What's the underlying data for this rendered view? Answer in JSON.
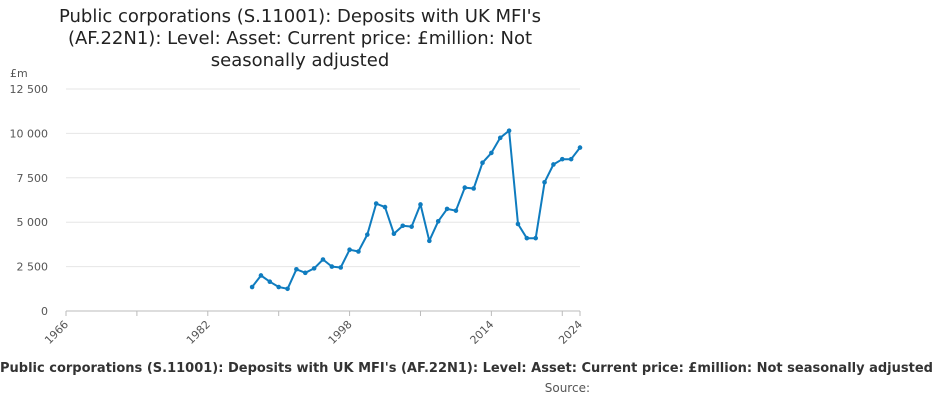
{
  "chart_data": {
    "type": "line",
    "title": "Public corporations (S.11001): Deposits with UK MFI's (AF.22N1): Level: Asset: Current price: £million: Not seasonally adjusted",
    "ylabel": "£m",
    "xlabel": "",
    "ylim": [
      0,
      12500
    ],
    "xlim": [
      1966,
      2024
    ],
    "y_ticks": [
      0,
      2500,
      5000,
      7500,
      10000,
      12500
    ],
    "y_tick_labels": [
      "0",
      "2 500",
      "5 000",
      "7 500",
      "10 000",
      "12 500"
    ],
    "x_ticks": [
      1966,
      1982,
      1998,
      2014,
      2024
    ],
    "x_tick_labels": [
      "1966",
      "1982",
      "1998",
      "2014",
      "2024"
    ],
    "grid": true,
    "legend_position": "bottom",
    "series": [
      {
        "name": "Public corporations (S.11001): Deposits with UK MFI's (AF.22N1): Level: Asset: Current price: £million: Not seasonally adjusted",
        "color": "#0f7cbf",
        "x": [
          1987,
          1988,
          1989,
          1990,
          1991,
          1992,
          1993,
          1994,
          1995,
          1996,
          1997,
          1998,
          1999,
          2000,
          2001,
          2002,
          2003,
          2004,
          2005,
          2006,
          2007,
          2008,
          2009,
          2010,
          2011,
          2012,
          2013,
          2014,
          2015,
          2016,
          2017,
          2018,
          2019,
          2020,
          2021,
          2022,
          2023,
          2024
        ],
        "values": [
          1350,
          2000,
          1650,
          1350,
          1250,
          2350,
          2150,
          2400,
          2900,
          2500,
          2450,
          3450,
          3350,
          4300,
          6050,
          5850,
          4350,
          4800,
          4750,
          6000,
          3950,
          5050,
          5750,
          5650,
          6950,
          6900,
          8350,
          8900,
          9750,
          10150,
          4900,
          4100,
          4100,
          7250,
          8250,
          8550,
          8550,
          9200
        ]
      }
    ]
  },
  "legend": {
    "text": "Public corporations (S.11001): Deposits with UK MFI's (AF.22N1): Level: Asset: Current price: £million: Not seasonally adjusted"
  },
  "source": {
    "label": "Source:"
  }
}
